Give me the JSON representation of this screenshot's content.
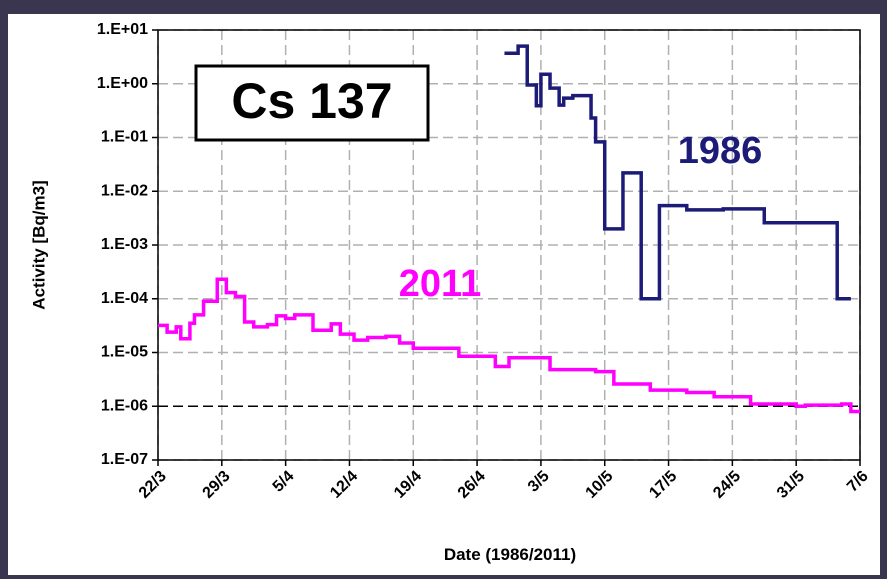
{
  "chart_data": {
    "type": "line",
    "step": true,
    "log_y": true,
    "grid": true,
    "title": "Cs 137",
    "x_label": "Date (1986/2011)",
    "y_label": "Activity [Bq/m3]",
    "xlim": [
      0,
      77
    ],
    "xticks": [
      {
        "value": 0,
        "label": "22/3"
      },
      {
        "value": 7,
        "label": "29/3"
      },
      {
        "value": 14,
        "label": "5/4"
      },
      {
        "value": 21,
        "label": "12/4"
      },
      {
        "value": 28,
        "label": "19/4"
      },
      {
        "value": 35,
        "label": "26/4"
      },
      {
        "value": 42,
        "label": "3/5"
      },
      {
        "value": 49,
        "label": "10/5"
      },
      {
        "value": 56,
        "label": "17/5"
      },
      {
        "value": 63,
        "label": "24/5"
      },
      {
        "value": 70,
        "label": "31/5"
      },
      {
        "value": 77,
        "label": "7/6"
      }
    ],
    "ylim": [
      1e-07,
      10
    ],
    "yticks": [
      {
        "value": 1e-07,
        "label": "1.E-07"
      },
      {
        "value": 1e-06,
        "label": "1.E-06"
      },
      {
        "value": 1e-05,
        "label": "1.E-05"
      },
      {
        "value": 0.0001,
        "label": "1.E-04"
      },
      {
        "value": 0.001,
        "label": "1.E-03"
      },
      {
        "value": 0.01,
        "label": "1.E-02"
      },
      {
        "value": 0.1,
        "label": "1.E-01"
      },
      {
        "value": 1,
        "label": "1.E+00"
      },
      {
        "value": 10,
        "label": "1.E+01"
      }
    ],
    "reference_line": 1e-06,
    "series": [
      {
        "name": "1986",
        "color": "#1c1c78",
        "x": [
          38,
          39.5,
          40.5,
          41.5,
          42,
          43,
          44,
          44.5,
          45.5,
          47.5,
          48,
          49,
          51,
          53,
          55,
          58,
          62,
          66.5,
          74.5,
          76
        ],
        "values": [
          3.7,
          5,
          0.95,
          0.39,
          1.5,
          0.83,
          0.4,
          0.54,
          0.6,
          0.23,
          0.083,
          0.002,
          0.022,
          0.0001,
          0.0054,
          0.0045,
          0.0047,
          0.0026,
          0.0001,
          0.0001
        ]
      },
      {
        "name": "2011",
        "color": "#ff00ff",
        "x": [
          0,
          1,
          2,
          2.5,
          3.5,
          4,
          5,
          6.5,
          7.5,
          8.5,
          9.5,
          10.5,
          12,
          13,
          14,
          15,
          17,
          19,
          20,
          21.5,
          23,
          25,
          26.5,
          28,
          33,
          37,
          38.5,
          43,
          48,
          50,
          54,
          58,
          61,
          65,
          70,
          71,
          75,
          76,
          77
        ],
        "values": [
          3.2e-05,
          2.4e-05,
          3e-05,
          1.8e-05,
          3.5e-05,
          5e-05,
          9e-05,
          0.00023,
          0.00013,
          0.00011,
          3.7e-05,
          3e-05,
          3.3e-05,
          4.8e-05,
          4.3e-05,
          5e-05,
          2.6e-05,
          3.4e-05,
          2.2e-05,
          1.7e-05,
          1.9e-05,
          2e-05,
          1.5e-05,
          1.2e-05,
          8.5e-06,
          5.5e-06,
          8e-06,
          4.8e-06,
          4.4e-06,
          2.6e-06,
          2e-06,
          1.8e-06,
          1.5e-06,
          1.1e-06,
          1e-06,
          1.05e-06,
          1.1e-06,
          8e-07,
          8e-07
        ]
      }
    ]
  }
}
